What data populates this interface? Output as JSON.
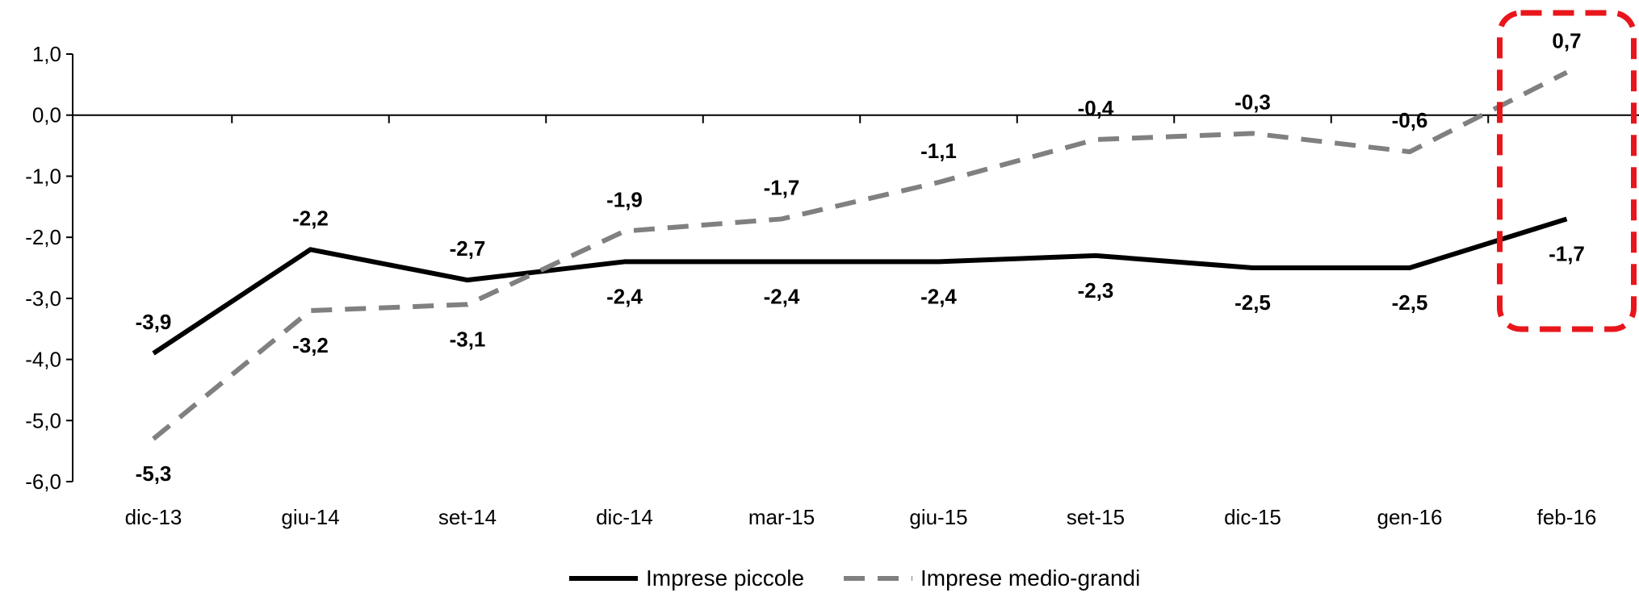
{
  "chart_data": {
    "type": "line",
    "categories": [
      "dic-13",
      "giu-14",
      "set-14",
      "dic-14",
      "mar-15",
      "giu-15",
      "set-15",
      "dic-15",
      "gen-16",
      "feb-16"
    ],
    "series": [
      {
        "name": "Imprese piccole",
        "values": [
          -3.9,
          -2.2,
          -2.7,
          -2.4,
          -2.4,
          -2.4,
          -2.3,
          -2.5,
          -2.5,
          -1.7
        ],
        "labels": [
          "-3,9",
          "-2,2",
          "-2,7",
          "-2,4",
          "-2,4",
          "-2,4",
          "-2,3",
          "-2,5",
          "-2,5",
          "-1,7"
        ],
        "color": "#000000",
        "style": "solid"
      },
      {
        "name": "Imprese medio-grandi",
        "values": [
          -5.3,
          -3.2,
          -3.1,
          -1.9,
          -1.7,
          -1.1,
          -0.4,
          -0.3,
          -0.6,
          0.7
        ],
        "labels": [
          "-5,3",
          "-3,2",
          "-3,1",
          "-1,9",
          "-1,7",
          "-1,1",
          "-0,4",
          "-0,3",
          "-0,6",
          "0,7"
        ],
        "color": "#808080",
        "style": "dashed"
      }
    ],
    "ylim": [
      -6,
      1
    ],
    "yticks": [
      1,
      0,
      -1,
      -2,
      -3,
      -4,
      -5,
      -6
    ],
    "ytick_labels": [
      "1,0",
      "0,0",
      "-1,0",
      "-2,0",
      "-3,0",
      "-4,0",
      "-5,0",
      "-6,0"
    ],
    "grid": false,
    "legend_position": "bottom-center",
    "highlight": {
      "category": "feb-16",
      "color": "#e8161b",
      "style": "dashed-rounded-box"
    },
    "title": "",
    "xlabel": "",
    "ylabel": ""
  }
}
